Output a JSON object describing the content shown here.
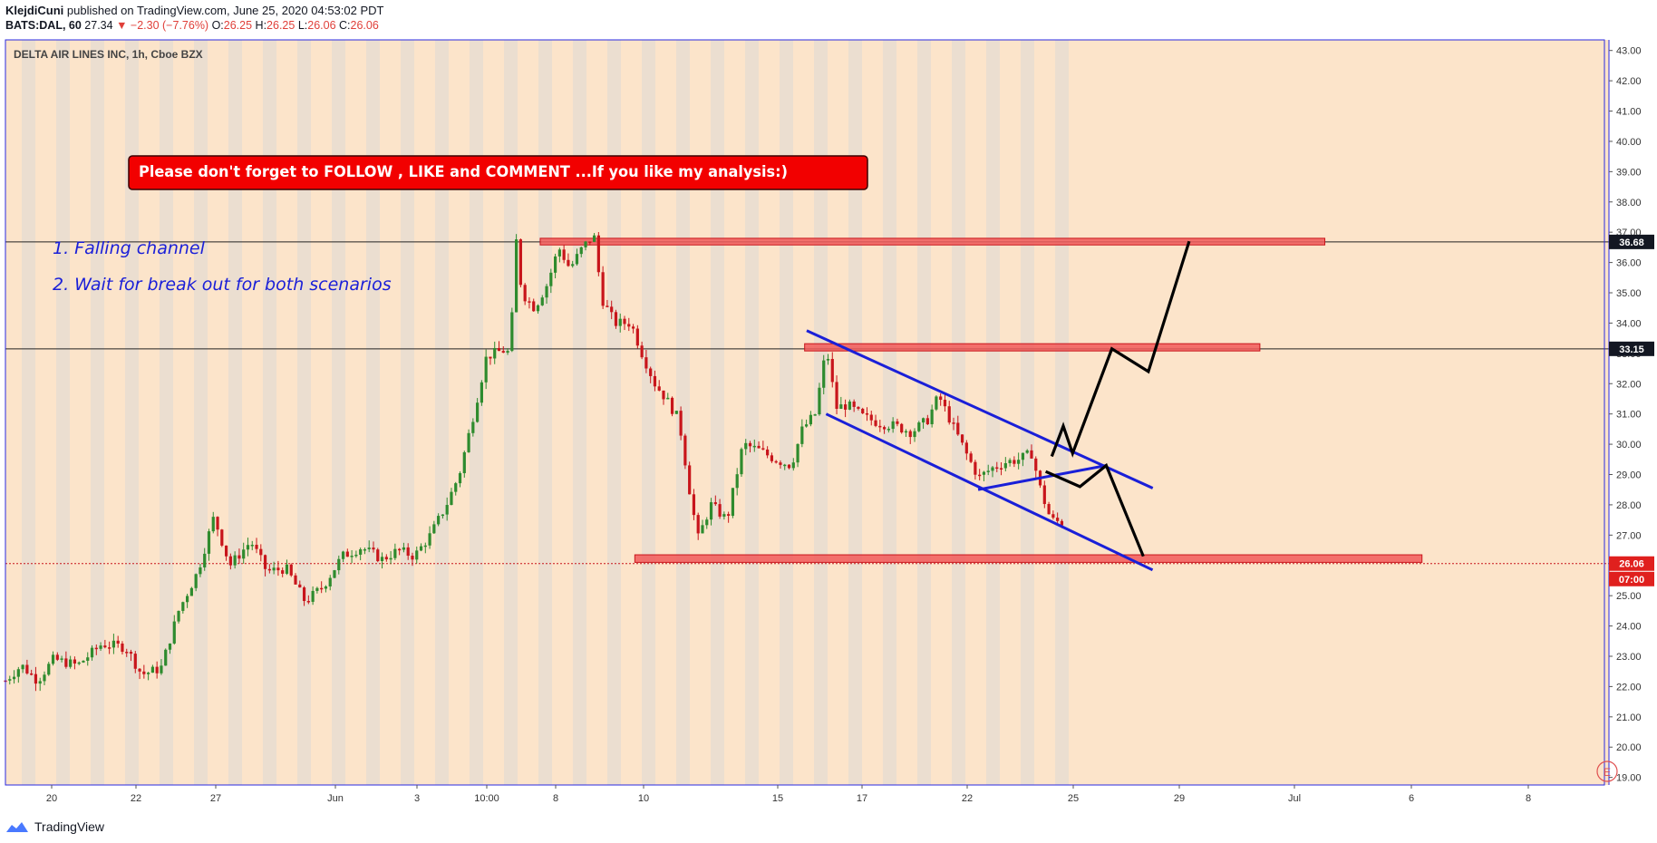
{
  "header": {
    "author": "KlejdiCuni",
    "published_text": "published on TradingView.com, June 25, 2020 04:53:02 PDT",
    "symbol": "BATS:DAL, 60",
    "last": "27.34",
    "change": "−2.30 (−7.76%)",
    "open_label": "O:",
    "open": "26.25",
    "high_label": "H:",
    "high": "26.25",
    "low_label": "L:",
    "low": "26.06",
    "close_label": "C:",
    "close": "26.06"
  },
  "footer": {
    "brand": "TradingView"
  },
  "colors": {
    "background": "#fce4ca",
    "stripe": "#ebded0",
    "up": "#2e8b2e",
    "down": "#c8151b",
    "channel": "#1a1fd8",
    "projection": "#000000",
    "zone": "#f15a5a",
    "frame": "#2a2ae0"
  },
  "chart_data": {
    "type": "candlestick",
    "title": "DELTA AIR LINES INC, 1h, Cboe BZX",
    "y_ticks": [
      "19.00",
      "20.00",
      "21.00",
      "22.00",
      "23.00",
      "24.00",
      "25.00",
      "26.00",
      "27.00",
      "28.00",
      "29.00",
      "30.00",
      "31.00",
      "32.00",
      "33.00",
      "34.00",
      "35.00",
      "36.00",
      "37.00",
      "38.00",
      "39.00",
      "40.00",
      "41.00",
      "42.00",
      "43.00"
    ],
    "y_range": [
      18.75,
      43.35
    ],
    "x_ticks": [
      "20",
      "22",
      "27",
      "Jun",
      "3",
      "10:00",
      "8",
      "10",
      "15",
      "17",
      "22",
      "25",
      "29",
      "Jul",
      "6",
      "8"
    ],
    "price_labels": [
      {
        "text": "36.68",
        "value": 36.68,
        "style": "dark"
      },
      {
        "text": "33.15",
        "value": 33.15,
        "style": "dark"
      },
      {
        "text": "26.06",
        "value": 26.06,
        "style": "red"
      },
      {
        "text": "07:00",
        "value": 25.55,
        "style": "red"
      }
    ],
    "horizontal_lines": [
      {
        "value": 36.68,
        "style": "solid"
      },
      {
        "value": 33.15,
        "style": "solid"
      },
      {
        "value": 26.06,
        "style": "dotted-red"
      }
    ],
    "zones": [
      {
        "x0": 0.3335,
        "x1": 0.8228,
        "y0": 36.58,
        "y1": 36.8
      },
      {
        "x0": 0.4984,
        "x1": 0.7823,
        "y0": 33.08,
        "y1": 33.32
      },
      {
        "x0": 0.3925,
        "x1": 0.8834,
        "y0": 26.1,
        "y1": 26.35
      }
    ],
    "channel_lines": [
      {
        "x0": 0.4997,
        "y0": 33.75,
        "x1": 0.7155,
        "y1": 28.55
      },
      {
        "x0": 0.5118,
        "y0": 31.0,
        "x1": 0.7154,
        "y1": 25.85
      },
      {
        "x0": 0.6066,
        "y0": 28.5,
        "x1": 0.6866,
        "y1": 29.3
      }
    ],
    "projection_up": [
      [
        0.6525,
        29.6
      ],
      [
        0.6597,
        30.6
      ],
      [
        0.6655,
        29.7
      ],
      [
        0.69,
        33.15
      ],
      [
        0.7128,
        32.4
      ],
      [
        0.7382,
        36.7
      ]
    ],
    "projection_down": [
      [
        0.6487,
        29.1
      ],
      [
        0.6701,
        28.6
      ],
      [
        0.6865,
        29.3
      ],
      [
        0.7096,
        26.3
      ]
    ],
    "annotations": [
      {
        "text": "Please don't forget  to FOLLOW , LIKE and COMMENT ...If you like my analysis:)",
        "kind": "banner"
      },
      {
        "text": "1. Falling channel",
        "kind": "note"
      },
      {
        "text": "2. Wait for break out for both scenarios",
        "kind": "note"
      }
    ],
    "price_path": [
      [
        0.0,
        22.2
      ],
      [
        0.01,
        22.7
      ],
      [
        0.02,
        22.2
      ],
      [
        0.03,
        22.9
      ],
      [
        0.045,
        22.7
      ],
      [
        0.06,
        23.4
      ],
      [
        0.075,
        23.3
      ],
      [
        0.085,
        22.4
      ],
      [
        0.097,
        22.6
      ],
      [
        0.108,
        24.5
      ],
      [
        0.12,
        25.8
      ],
      [
        0.13,
        27.6
      ],
      [
        0.14,
        26.0
      ],
      [
        0.153,
        26.8
      ],
      [
        0.163,
        25.8
      ],
      [
        0.175,
        25.9
      ],
      [
        0.187,
        24.8
      ],
      [
        0.198,
        25.3
      ],
      [
        0.21,
        26.3
      ],
      [
        0.222,
        26.6
      ],
      [
        0.235,
        26.2
      ],
      [
        0.245,
        26.5
      ],
      [
        0.255,
        26.3
      ],
      [
        0.265,
        27.0
      ],
      [
        0.275,
        28.0
      ],
      [
        0.283,
        29.0
      ],
      [
        0.292,
        31.0
      ],
      [
        0.3,
        32.9
      ],
      [
        0.31,
        33.1
      ],
      [
        0.315,
        33.0
      ],
      [
        0.318,
        37.0
      ],
      [
        0.322,
        35.0
      ],
      [
        0.33,
        34.5
      ],
      [
        0.338,
        35.3
      ],
      [
        0.345,
        36.5
      ],
      [
        0.352,
        35.8
      ],
      [
        0.36,
        36.5
      ],
      [
        0.367,
        36.9
      ],
      [
        0.372,
        34.8
      ],
      [
        0.38,
        34.0
      ],
      [
        0.39,
        34.0
      ],
      [
        0.397,
        33.0
      ],
      [
        0.405,
        32.0
      ],
      [
        0.412,
        31.5
      ],
      [
        0.42,
        30.8
      ],
      [
        0.428,
        28.0
      ],
      [
        0.432,
        26.9
      ],
      [
        0.44,
        28.0
      ],
      [
        0.45,
        27.5
      ],
      [
        0.46,
        30.0
      ],
      [
        0.47,
        29.8
      ],
      [
        0.48,
        29.5
      ],
      [
        0.49,
        29.3
      ],
      [
        0.497,
        30.5
      ],
      [
        0.505,
        31.0
      ],
      [
        0.512,
        33.2
      ],
      [
        0.518,
        31.2
      ],
      [
        0.525,
        31.3
      ],
      [
        0.535,
        30.9
      ],
      [
        0.545,
        30.7
      ],
      [
        0.555,
        30.6
      ],
      [
        0.565,
        30.4
      ],
      [
        0.575,
        30.8
      ],
      [
        0.582,
        31.6
      ],
      [
        0.59,
        30.7
      ],
      [
        0.6,
        29.6
      ],
      [
        0.607,
        28.9
      ],
      [
        0.615,
        29.2
      ],
      [
        0.623,
        29.4
      ],
      [
        0.632,
        29.5
      ],
      [
        0.64,
        29.7
      ],
      [
        0.646,
        28.4
      ],
      [
        0.652,
        27.5
      ],
      [
        0.66,
        27.4
      ]
    ]
  }
}
